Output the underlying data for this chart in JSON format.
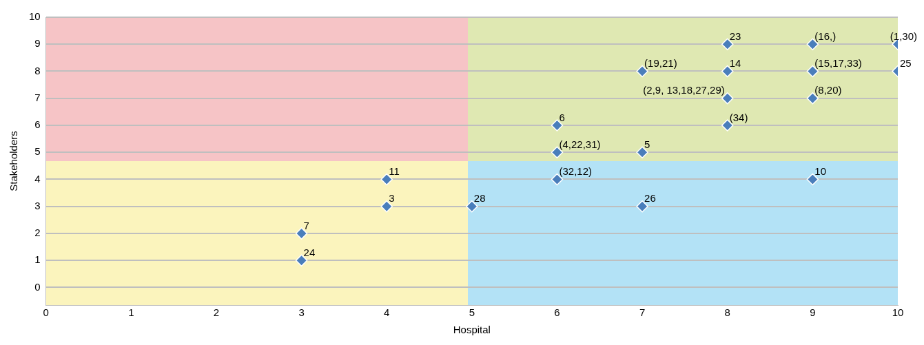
{
  "chart_data": {
    "type": "scatter",
    "xlabel": "Hospital",
    "ylabel": "Stakeholders",
    "x": [
      3,
      3,
      4,
      4,
      5,
      6,
      6,
      6,
      7,
      7,
      7,
      8,
      8,
      8,
      8,
      9,
      9,
      9,
      9,
      10,
      10
    ],
    "series": [
      {
        "color": "#4a7ebb",
        "values": [
          2,
          1,
          4,
          3,
          3,
          6,
          5,
          4,
          8,
          5,
          3,
          9,
          8,
          7,
          6,
          9,
          8,
          7,
          4,
          9,
          8
        ]
      }
    ],
    "annotations": [
      {
        "text": "7",
        "x": 3,
        "y": 2
      },
      {
        "text": "24",
        "x": 3,
        "y": 1
      },
      {
        "text": "11",
        "x": 4,
        "y": 4
      },
      {
        "text": "3",
        "x": 4,
        "y": 3
      },
      {
        "text": "28",
        "x": 5,
        "y": 3
      },
      {
        "text": "6",
        "x": 6,
        "y": 6
      },
      {
        "text": "(4,22,31)",
        "x": 6,
        "y": 5
      },
      {
        "text": "(32,12)",
        "x": 6,
        "y": 4
      },
      {
        "text": "(19,21)",
        "x": 7,
        "y": 8
      },
      {
        "text": "5",
        "x": 7,
        "y": 5
      },
      {
        "text": "26",
        "x": 7,
        "y": 3
      },
      {
        "text": "23",
        "x": 8,
        "y": 9
      },
      {
        "text": "14",
        "x": 8,
        "y": 8
      },
      {
        "text": "(2,9, 13,18,27,29)",
        "x": 8,
        "y": 7
      },
      {
        "text": "(34)",
        "x": 8,
        "y": 6
      },
      {
        "text": "(16,)",
        "x": 9,
        "y": 9
      },
      {
        "text": "(15,17,33)",
        "x": 9,
        "y": 8
      },
      {
        "text": "(8,20)",
        "x": 9,
        "y": 7
      },
      {
        "text": "10",
        "x": 9,
        "y": 4
      },
      {
        "text": "(1,30)",
        "x": 10,
        "y": 9
      },
      {
        "text": "25",
        "x": 10,
        "y": 8
      }
    ],
    "xlim": [
      0,
      10
    ],
    "xticks": [
      0,
      1,
      2,
      3,
      4,
      5,
      6,
      7,
      8,
      9,
      10
    ],
    "ylim": [
      -0.65,
      10
    ],
    "yticks": [
      0,
      1,
      2,
      3,
      4,
      5,
      6,
      7,
      8,
      9,
      10
    ],
    "grid": "y",
    "legend": false,
    "marker": "diamond"
  }
}
